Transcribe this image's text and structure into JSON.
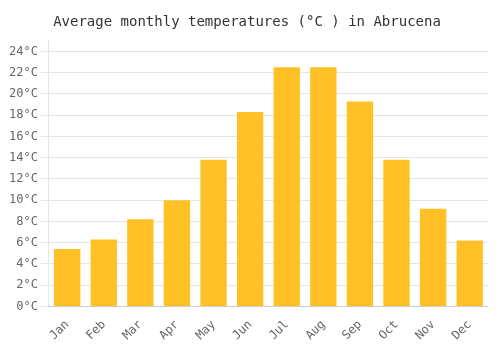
{
  "chart_data": {
    "type": "bar",
    "title": "Average monthly temperatures (°C ) in Abrucena",
    "categories": [
      "Jan",
      "Feb",
      "Mar",
      "Apr",
      "May",
      "Jun",
      "Jul",
      "Aug",
      "Sep",
      "Oct",
      "Nov",
      "Dec"
    ],
    "values": [
      5.4,
      6.3,
      8.2,
      10.0,
      13.8,
      18.3,
      22.5,
      22.5,
      19.3,
      13.8,
      9.2,
      6.2
    ],
    "color": "#FFC125",
    "ylim": [
      0,
      25
    ],
    "yticks": [
      {
        "value": 0,
        "label": "0°C"
      },
      {
        "value": 2,
        "label": "2°C"
      },
      {
        "value": 4,
        "label": "4°C"
      },
      {
        "value": 6,
        "label": "6°C"
      },
      {
        "value": 8,
        "label": "8°C"
      },
      {
        "value": 10,
        "label": "10°C"
      },
      {
        "value": 12,
        "label": "12°C"
      },
      {
        "value": 14,
        "label": "14°C"
      },
      {
        "value": 16,
        "label": "16°C"
      },
      {
        "value": 18,
        "label": "18°C"
      },
      {
        "value": 20,
        "label": "20°C"
      },
      {
        "value": 22,
        "label": "22°C"
      },
      {
        "value": 24,
        "label": "24°C"
      }
    ],
    "grid": true
  }
}
